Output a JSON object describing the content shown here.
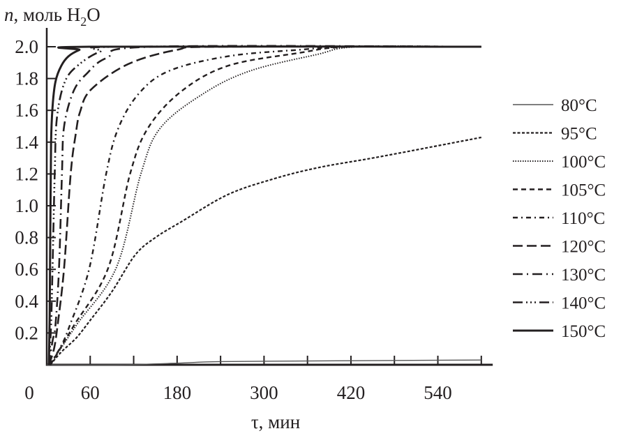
{
  "chart_data": {
    "type": "line",
    "title": "",
    "xlabel": "τ, мин",
    "ylabel": {
      "var": "n",
      "rest": ", моль H",
      "sub": "2",
      "tail": "O"
    },
    "xlim": [
      0,
      610
    ],
    "ylim": [
      0,
      2.1
    ],
    "xticks_minor": [
      60,
      120,
      180,
      240,
      300,
      360,
      420,
      480,
      540,
      600
    ],
    "xtick_labels": [
      "0",
      "60",
      "180",
      "300",
      "420",
      "540"
    ],
    "xtick_label_values": [
      0,
      60,
      180,
      300,
      420,
      540
    ],
    "yticks": [
      0.2,
      0.4,
      0.6,
      0.8,
      1.0,
      1.2,
      1.4,
      1.6,
      1.8,
      2.0
    ],
    "ytick_labels": [
      "0.2",
      "0.4",
      "0.6",
      "0.8",
      "1.0",
      "1.2",
      "1.4",
      "1.6",
      "1.8",
      "2.0"
    ],
    "grid": false,
    "legend_position": "right",
    "color": "#231f20",
    "series": [
      {
        "name": "80°C",
        "style": "thin-solid",
        "points": [
          [
            0,
            0
          ],
          [
            100,
            0
          ],
          [
            180,
            0.01
          ],
          [
            240,
            0.02
          ],
          [
            400,
            0.025
          ],
          [
            600,
            0.03
          ]
        ]
      },
      {
        "name": "95°C",
        "style": "short-dash",
        "points": [
          [
            5,
            0
          ],
          [
            20,
            0.08
          ],
          [
            41,
            0.17
          ],
          [
            60,
            0.28
          ],
          [
            90,
            0.46
          ],
          [
            122,
            0.69
          ],
          [
            150,
            0.8
          ],
          [
            186,
            0.9
          ],
          [
            250,
            1.07
          ],
          [
            314,
            1.17
          ],
          [
            375,
            1.24
          ],
          [
            450,
            1.3
          ],
          [
            520,
            1.36
          ],
          [
            600,
            1.43
          ]
        ]
      },
      {
        "name": "100°C",
        "style": "dotted",
        "points": [
          [
            5,
            0
          ],
          [
            41,
            0.25
          ],
          [
            96,
            0.61
          ],
          [
            130,
            1.2
          ],
          [
            157,
            1.49
          ],
          [
            218,
            1.71
          ],
          [
            282,
            1.85
          ],
          [
            372,
            1.95
          ],
          [
            430,
            2.0
          ],
          [
            600,
            2.0
          ]
        ]
      },
      {
        "name": "105°C",
        "style": "dash",
        "points": [
          [
            5,
            0
          ],
          [
            38,
            0.25
          ],
          [
            85,
            0.61
          ],
          [
            115,
            1.2
          ],
          [
            140,
            1.49
          ],
          [
            186,
            1.72
          ],
          [
            250,
            1.88
          ],
          [
            347,
            1.96
          ],
          [
            420,
            2.0
          ],
          [
            600,
            2.0
          ]
        ]
      },
      {
        "name": "110°C",
        "style": "dash-dot",
        "points": [
          [
            4,
            0
          ],
          [
            20,
            0.12
          ],
          [
            32,
            0.25
          ],
          [
            59,
            0.61
          ],
          [
            82,
            1.2
          ],
          [
            99,
            1.49
          ],
          [
            128,
            1.71
          ],
          [
            170,
            1.85
          ],
          [
            250,
            1.94
          ],
          [
            346,
            1.98
          ],
          [
            420,
            2.0
          ],
          [
            600,
            2.0
          ]
        ]
      },
      {
        "name": "120°C",
        "style": "long-dash",
        "points": [
          [
            3,
            0
          ],
          [
            10,
            0.1
          ],
          [
            15,
            0.25
          ],
          [
            24,
            0.61
          ],
          [
            33,
            1.2
          ],
          [
            40,
            1.45
          ],
          [
            46,
            1.59
          ],
          [
            61,
            1.73
          ],
          [
            112,
            1.89
          ],
          [
            179,
            1.98
          ],
          [
            240,
            2.0
          ],
          [
            600,
            2.0
          ]
        ]
      },
      {
        "name": "130°C",
        "style": "long-dash-dot",
        "points": [
          [
            3,
            0
          ],
          [
            8,
            0.15
          ],
          [
            12,
            0.25
          ],
          [
            17,
            0.61
          ],
          [
            21,
            1.2
          ],
          [
            24,
            1.5
          ],
          [
            37,
            1.72
          ],
          [
            55,
            1.83
          ],
          [
            83,
            1.93
          ],
          [
            147,
            2.0
          ],
          [
            600,
            2.0
          ]
        ]
      },
      {
        "name": "140°C",
        "style": "long-dash-dot-dot",
        "points": [
          [
            3,
            0
          ],
          [
            6,
            0.25
          ],
          [
            8,
            0.61
          ],
          [
            11,
            1.2
          ],
          [
            14,
            1.55
          ],
          [
            25,
            1.78
          ],
          [
            45,
            1.89
          ],
          [
            74,
            1.97
          ],
          [
            106,
            2.0
          ],
          [
            600,
            2.0
          ]
        ]
      },
      {
        "name": "150°C",
        "style": "thick-solid",
        "points": [
          [
            3,
            0
          ],
          [
            4,
            0.3
          ],
          [
            5,
            0.9
          ],
          [
            6,
            1.4
          ],
          [
            8,
            1.62
          ],
          [
            12,
            1.78
          ],
          [
            20,
            1.88
          ],
          [
            30,
            1.94
          ],
          [
            45,
            1.98
          ],
          [
            60,
            2.0
          ],
          [
            600,
            2.0
          ]
        ]
      }
    ]
  }
}
